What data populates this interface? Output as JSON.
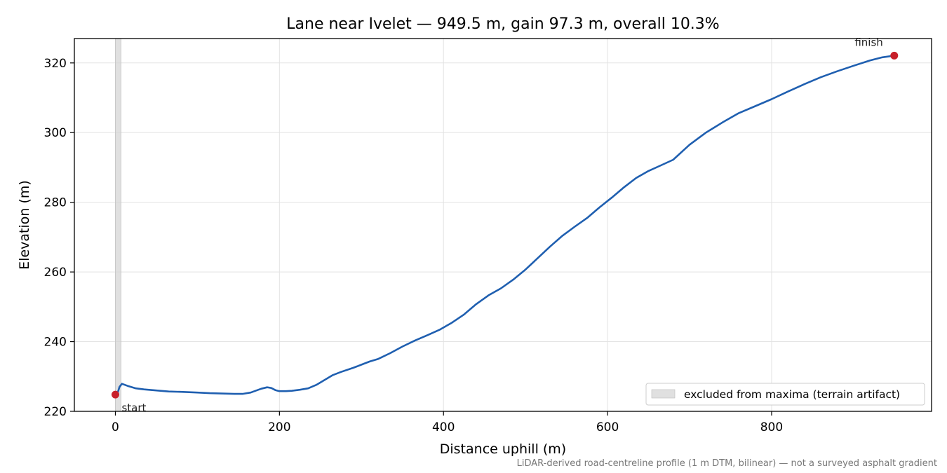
{
  "chart_data": {
    "type": "line",
    "title": "Lane near Ivelet — 949.5 m, gain 97.3 m, overall 10.3%",
    "xlabel": "Distance uphill (m)",
    "ylabel": "Elevation (m)",
    "xlim": [
      -50,
      995
    ],
    "ylim": [
      220,
      327
    ],
    "x_ticks": [
      0,
      200,
      400,
      600,
      800
    ],
    "y_ticks": [
      220,
      240,
      260,
      280,
      300,
      320
    ],
    "grid": true,
    "legend_position": "lower-right",
    "line_color": "#1f5fb0",
    "marker_color": "#c8202a",
    "shade_color": "#d3d3d3",
    "series": [
      {
        "x": [
          0,
          3,
          5,
          8,
          15,
          25,
          35,
          50,
          65,
          80,
          100,
          115,
          130,
          145,
          155,
          165,
          172,
          178,
          185,
          190,
          195,
          200,
          208,
          215,
          225,
          235,
          245,
          255,
          265,
          275,
          290,
          300,
          310,
          320,
          335,
          350,
          365,
          380,
          395,
          410,
          425,
          440,
          455,
          470,
          485,
          500,
          515,
          530,
          545,
          560,
          575,
          590,
          605,
          620,
          635,
          650,
          665,
          680,
          700,
          720,
          740,
          760,
          780,
          800,
          820,
          840,
          860,
          880,
          900,
          920,
          935,
          949.5
        ],
        "y": [
          224.8,
          225.5,
          227.0,
          227.9,
          227.3,
          226.6,
          226.3,
          226.0,
          225.7,
          225.6,
          225.4,
          225.2,
          225.1,
          225.0,
          225.0,
          225.4,
          226.0,
          226.5,
          226.9,
          226.7,
          226.1,
          225.8,
          225.8,
          225.9,
          226.2,
          226.6,
          227.6,
          229.0,
          230.4,
          231.3,
          232.5,
          233.4,
          234.3,
          235.0,
          236.7,
          238.6,
          240.3,
          241.8,
          243.4,
          245.4,
          247.8,
          250.8,
          253.3,
          255.3,
          257.8,
          260.7,
          264.0,
          267.3,
          270.4,
          273.0,
          275.5,
          278.5,
          281.3,
          284.3,
          287.0,
          289.0,
          290.6,
          292.2,
          296.5,
          300.0,
          302.9,
          305.6,
          307.6,
          309.6,
          311.8,
          313.9,
          315.9,
          317.6,
          319.2,
          320.7,
          321.6,
          322.1
        ]
      }
    ],
    "excluded_region": [
      0,
      7
    ],
    "markers": [
      {
        "label": "start",
        "x": 0,
        "y": 224.8
      },
      {
        "label": "finish",
        "x": 949.5,
        "y": 322.1
      }
    ],
    "legend": [
      "excluded from maxima (terrain artifact)"
    ],
    "footnote": "LiDAR-derived road-centreline profile (1 m DTM, bilinear) — not a surveyed asphalt gradient"
  }
}
